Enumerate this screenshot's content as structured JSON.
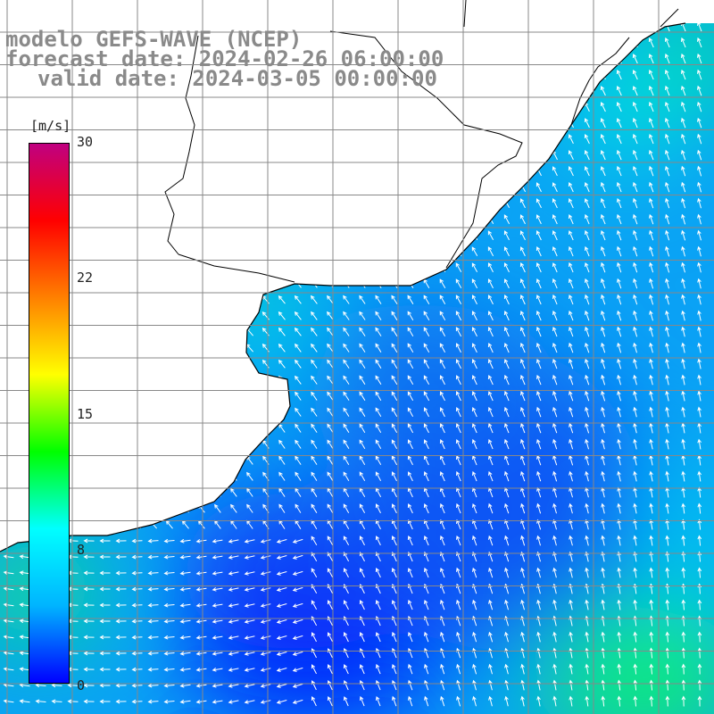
{
  "title": {
    "line1": "modelo GEFS-WAVE (NCEP)",
    "line2": "forecast date: 2024-02-26 06:00:00",
    "line3": "valid date: 2024-03-05 00:00:00"
  },
  "colorbar": {
    "unit": "[m/s]",
    "ticks": [
      "30",
      "22",
      "15",
      "8",
      "0"
    ],
    "min": 0,
    "max": 30,
    "stops": [
      "#0000ff",
      "#00b4ff",
      "#00ffff",
      "#00ff00",
      "#ffff00",
      "#ff8000",
      "#ff0000",
      "#c00080"
    ]
  },
  "colors": {
    "land": "#ffffff",
    "coast": "#000000",
    "grid": "#888888",
    "arrow": "#ffffff"
  }
}
